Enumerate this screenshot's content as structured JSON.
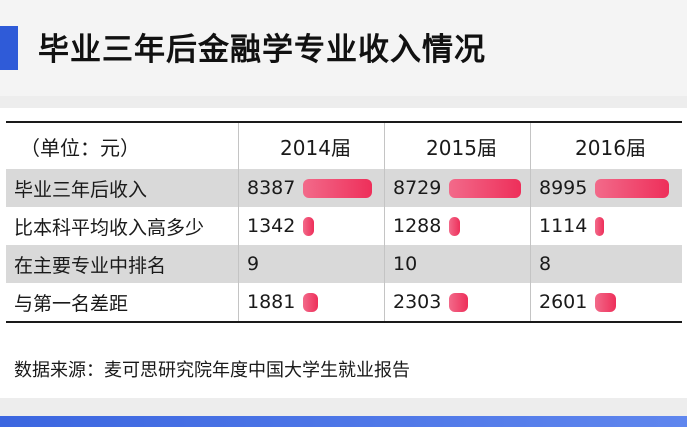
{
  "title": "毕业三年后金融学专业收入情况",
  "table": {
    "unit_label": "（单位：元）",
    "years": [
      "2014届",
      "2015届",
      "2016届"
    ],
    "rows": [
      {
        "label": "毕业三年后收入",
        "values": [
          "8387",
          "8729",
          "8995"
        ],
        "bar": true
      },
      {
        "label": "比本科平均收入高多少",
        "values": [
          "1342",
          "1288",
          "1114"
        ],
        "bar": true
      },
      {
        "label": "在主要专业中排名",
        "values": [
          "9",
          "10",
          "8"
        ],
        "bar": false
      },
      {
        "label": "与第一名差距",
        "values": [
          "1881",
          "2303",
          "2601"
        ],
        "bar": true
      }
    ]
  },
  "source": "数据来源：麦可思研究院年度中国大学生就业报告",
  "colors": {
    "accent": "#2f5bd8",
    "bar": "#ee3a64",
    "shaded_row": "#d9d9d9"
  }
}
